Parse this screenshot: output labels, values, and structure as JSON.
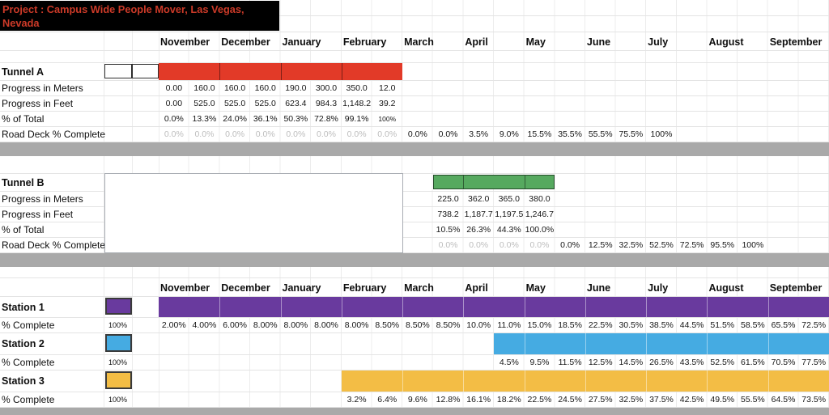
{
  "colors": {
    "title_bg": "#000000",
    "title_text": "#cc3a28",
    "tunnel_a_bar": "#e23a28",
    "tunnel_b_bar": "#56a95f",
    "station_1": "#693a9e",
    "station_2": "#45abe2",
    "station_3": "#f3bd45",
    "separator_band": "#a9a9a9",
    "muted_text": "#bdbdbd",
    "gridline": "#e4e4e4"
  },
  "chart_data": {
    "type": "table",
    "subtype": "gantt-project-schedule",
    "title": "Project : Campus Wide People Mover, Las Vegas, Nevada",
    "months": [
      "November",
      "December",
      "January",
      "February",
      "March",
      "April",
      "May",
      "June",
      "July",
      "August",
      "September"
    ],
    "columns_per_month": 2,
    "column_count": 22,
    "sections": [
      {
        "name": "Tunnel A",
        "lead_boxes": true,
        "bar": {
          "from": 1,
          "to": 8,
          "color": "#e23a28",
          "divider": "dark"
        },
        "rows": [
          {
            "label": "Progress in Meters",
            "cells": [
              {
                "c": 1,
                "t": "0.00"
              },
              {
                "c": 2,
                "t": "160.0"
              },
              {
                "c": 3,
                "t": "160.0"
              },
              {
                "c": 4,
                "t": "160.0"
              },
              {
                "c": 5,
                "t": "190.0"
              },
              {
                "c": 6,
                "t": "300.0"
              },
              {
                "c": 7,
                "t": "350.0"
              },
              {
                "c": 8,
                "t": "12.0"
              }
            ]
          },
          {
            "label": "Progress in Feet",
            "cells": [
              {
                "c": 1,
                "t": "0.00"
              },
              {
                "c": 2,
                "t": "525.0"
              },
              {
                "c": 3,
                "t": "525.0"
              },
              {
                "c": 4,
                "t": "525.0"
              },
              {
                "c": 5,
                "t": "623.4"
              },
              {
                "c": 6,
                "t": "984.3"
              },
              {
                "c": 7,
                "t": "1,148.2"
              },
              {
                "c": 8,
                "t": "39.2"
              }
            ]
          },
          {
            "label": "% of Total",
            "cells": [
              {
                "c": 1,
                "t": "0.0%"
              },
              {
                "c": 2,
                "t": "13.3%"
              },
              {
                "c": 3,
                "t": "24.0%"
              },
              {
                "c": 4,
                "t": "36.1%"
              },
              {
                "c": 5,
                "t": "50.3%"
              },
              {
                "c": 6,
                "t": "72.8%"
              },
              {
                "c": 7,
                "t": "99.1%"
              },
              {
                "c": 8,
                "t": "100%",
                "s": 1
              }
            ]
          },
          {
            "label": "Road Deck % Complete",
            "cells": [
              {
                "c": 1,
                "t": "0.0%",
                "m": 1
              },
              {
                "c": 2,
                "t": "0.0%",
                "m": 1
              },
              {
                "c": 3,
                "t": "0.0%",
                "m": 1
              },
              {
                "c": 4,
                "t": "0.0%",
                "m": 1
              },
              {
                "c": 5,
                "t": "0.0%",
                "m": 1
              },
              {
                "c": 6,
                "t": "0.0%",
                "m": 1
              },
              {
                "c": 7,
                "t": "0.0%",
                "m": 1
              },
              {
                "c": 8,
                "t": "0.0%",
                "m": 1
              },
              {
                "c": 9,
                "t": "0.0%"
              },
              {
                "c": 10,
                "t": "0.0%"
              },
              {
                "c": 11,
                "t": "3.5%"
              },
              {
                "c": 12,
                "t": "9.0%"
              },
              {
                "c": 13,
                "t": "15.5%"
              },
              {
                "c": 14,
                "t": "35.5%"
              },
              {
                "c": 15,
                "t": "55.5%"
              },
              {
                "c": 16,
                "t": "75.5%"
              },
              {
                "c": 17,
                "t": "100%"
              }
            ]
          }
        ]
      },
      {
        "name": "Tunnel B",
        "overlay_box": true,
        "bar": {
          "from": 10,
          "to": 13,
          "color": "#56a95f",
          "divider": "dark",
          "border": true
        },
        "rows": [
          {
            "label": "Progress in Meters",
            "cells": [
              {
                "c": 10,
                "t": "225.0"
              },
              {
                "c": 11,
                "t": "362.0"
              },
              {
                "c": 12,
                "t": "365.0"
              },
              {
                "c": 13,
                "t": "380.0"
              }
            ]
          },
          {
            "label": "Progress in Feet",
            "cells": [
              {
                "c": 10,
                "t": "738.2"
              },
              {
                "c": 11,
                "t": "1,187.7"
              },
              {
                "c": 12,
                "t": "1,197.5"
              },
              {
                "c": 13,
                "t": "1,246.7"
              }
            ]
          },
          {
            "label": "% of Total",
            "cells": [
              {
                "c": 10,
                "t": "10.5%"
              },
              {
                "c": 11,
                "t": "26.3%"
              },
              {
                "c": 12,
                "t": "44.3%"
              },
              {
                "c": 13,
                "t": "100.0%"
              }
            ]
          },
          {
            "label": "Road Deck % Complete",
            "cells": [
              {
                "c": 10,
                "t": "0.0%",
                "m": 1
              },
              {
                "c": 11,
                "t": "0.0%",
                "m": 1
              },
              {
                "c": 12,
                "t": "0.0%",
                "m": 1
              },
              {
                "c": 13,
                "t": "0.0%",
                "m": 1
              },
              {
                "c": 14,
                "t": "0.0%"
              },
              {
                "c": 15,
                "t": "12.5%"
              },
              {
                "c": 16,
                "t": "32.5%"
              },
              {
                "c": 17,
                "t": "52.5%"
              },
              {
                "c": 18,
                "t": "72.5%"
              },
              {
                "c": 19,
                "t": "95.5%"
              },
              {
                "c": 20,
                "t": "100%"
              }
            ]
          }
        ]
      },
      {
        "name": "Station 1",
        "legend": "100%",
        "swatch": "#693a9e",
        "bar": {
          "from": 1,
          "to": 22,
          "color": "#693a9e",
          "divider": "light"
        },
        "rows": [
          {
            "label": "% Complete",
            "cells": [
              {
                "c": 1,
                "t": "2.00%"
              },
              {
                "c": 2,
                "t": "4.00%"
              },
              {
                "c": 3,
                "t": "6.00%"
              },
              {
                "c": 4,
                "t": "8.00%"
              },
              {
                "c": 5,
                "t": "8.00%"
              },
              {
                "c": 6,
                "t": "8.00%"
              },
              {
                "c": 7,
                "t": "8.00%"
              },
              {
                "c": 8,
                "t": "8.50%"
              },
              {
                "c": 9,
                "t": "8.50%"
              },
              {
                "c": 10,
                "t": "8.50%"
              },
              {
                "c": 11,
                "t": "10.0%"
              },
              {
                "c": 12,
                "t": "11.0%"
              },
              {
                "c": 13,
                "t": "15.0%"
              },
              {
                "c": 14,
                "t": "18.5%"
              },
              {
                "c": 15,
                "t": "22.5%"
              },
              {
                "c": 16,
                "t": "30.5%"
              },
              {
                "c": 17,
                "t": "38.5%"
              },
              {
                "c": 18,
                "t": "44.5%"
              },
              {
                "c": 19,
                "t": "51.5%"
              },
              {
                "c": 20,
                "t": "58.5%"
              },
              {
                "c": 21,
                "t": "65.5%"
              },
              {
                "c": 22,
                "t": "72.5%"
              }
            ]
          }
        ]
      },
      {
        "name": "Station 2",
        "legend": "100%",
        "swatch": "#45abe2",
        "bar": {
          "from": 12,
          "to": 22,
          "color": "#45abe2",
          "divider": "light"
        },
        "rows": [
          {
            "label": "% Complete",
            "cells": [
              {
                "c": 12,
                "t": "4.5%"
              },
              {
                "c": 13,
                "t": "9.5%"
              },
              {
                "c": 14,
                "t": "11.5%"
              },
              {
                "c": 15,
                "t": "12.5%"
              },
              {
                "c": 16,
                "t": "14.5%"
              },
              {
                "c": 17,
                "t": "26.5%"
              },
              {
                "c": 18,
                "t": "43.5%"
              },
              {
                "c": 19,
                "t": "52.5%"
              },
              {
                "c": 20,
                "t": "61.5%"
              },
              {
                "c": 21,
                "t": "70.5%"
              },
              {
                "c": 22,
                "t": "77.5%"
              }
            ]
          }
        ]
      },
      {
        "name": "Station 3",
        "legend": "100%",
        "swatch": "#f3bd45",
        "bar": {
          "from": 7,
          "to": 22,
          "color": "#f3bd45",
          "divider": "light"
        },
        "rows": [
          {
            "label": "% Complete",
            "cells": [
              {
                "c": 7,
                "t": "3.2%"
              },
              {
                "c": 8,
                "t": "6.4%"
              },
              {
                "c": 9,
                "t": "9.6%"
              },
              {
                "c": 10,
                "t": "12.8%"
              },
              {
                "c": 11,
                "t": "16.1%"
              },
              {
                "c": 12,
                "t": "18.2%"
              },
              {
                "c": 13,
                "t": "22.5%"
              },
              {
                "c": 14,
                "t": "24.5%"
              },
              {
                "c": 15,
                "t": "27.5%"
              },
              {
                "c": 16,
                "t": "32.5%"
              },
              {
                "c": 17,
                "t": "37.5%"
              },
              {
                "c": 18,
                "t": "42.5%"
              },
              {
                "c": 19,
                "t": "49.5%"
              },
              {
                "c": 20,
                "t": "55.5%"
              },
              {
                "c": 21,
                "t": "64.5%"
              },
              {
                "c": 22,
                "t": "73.5%"
              }
            ]
          }
        ]
      }
    ]
  }
}
